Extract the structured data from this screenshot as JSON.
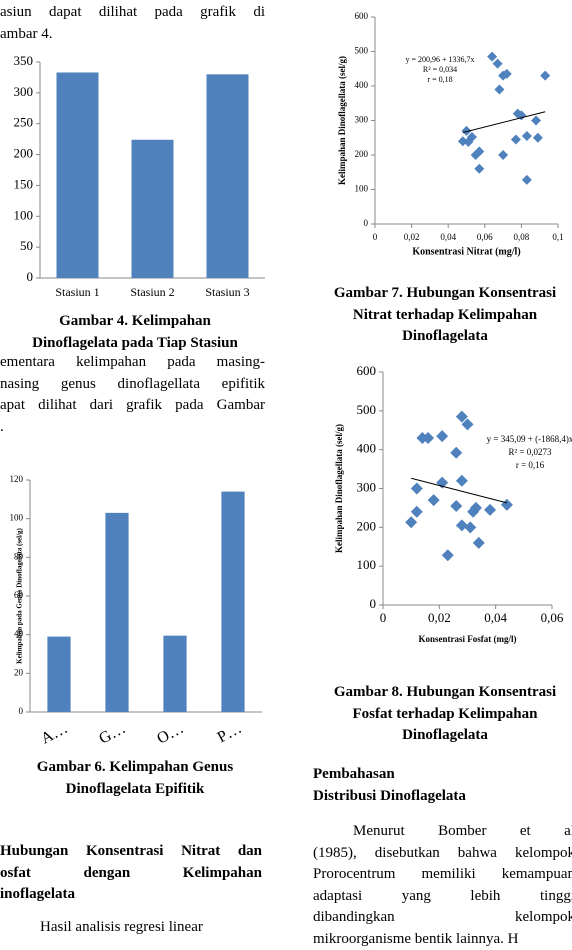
{
  "blocks": [
    {
      "lines": [
        "asiun dapat dilihat pada grafik di",
        "ambar 4."
      ]
    },
    {
      "lines": [
        "Gambar 4. Kelimpahan",
        "Dinoflagelata pada Tiap Stasiun"
      ]
    },
    {
      "lines": [
        "ementara kelimpahan pada masing-",
        "nasing genus dinoflagellata epifitik",
        "apat dilihat dari grafik pada Gambar",
        "."
      ]
    },
    {
      "lines": [
        "Gambar 6. Kelimpahan Genus",
        "Dinoflagelata Epifitik"
      ]
    },
    {
      "lines": [
        "Hubungan Konsentrasi Nitrat dan",
        "osfat dengan Kelimpahan",
        "inoflagelata"
      ]
    },
    {
      "lines": [
        "Hasil analisis regresi linear"
      ]
    },
    {
      "lines": [
        "Gambar 7. Hubungan Konsentrasi",
        "Nitrat terhadap Kelimpahan",
        "Dinoflagelata"
      ]
    },
    {
      "lines": [
        "Gambar 8. Hubungan Konsentrasi",
        "Fosfat terhadap Kelimpahan",
        "Dinoflagelata"
      ]
    },
    {
      "lines": [
        "Pembahasan",
        "Distribusi Dinoflagelata"
      ]
    },
    {
      "lines": [
        "Menurut Bomber et al",
        "(1985), disebutkan bahwa kelompok",
        "Prorocentrum memiliki kemampuan",
        "adaptasi yang lebih tinggi",
        "dibandingkan kelompok",
        "mikroorganisme bentik lainnya. H"
      ]
    }
  ],
  "chart_data": [
    {
      "type": "bar",
      "categories": [
        "Stasiun 1",
        "Stasiun 2",
        "Stasiun 3"
      ],
      "values": [
        333,
        224,
        330
      ],
      "color": "#4f81bd",
      "ylim": [
        0,
        350
      ],
      "yticks": [
        0,
        50,
        100,
        150,
        200,
        250,
        300,
        350
      ]
    },
    {
      "type": "bar",
      "ylabel": "Kelimpahan pada Genus Dinoflagelata (sel/g)",
      "categories": [
        "A…",
        "G…",
        "O…",
        "P…"
      ],
      "values": [
        39,
        103,
        39.5,
        114
      ],
      "color": "#4f81bd",
      "ylim": [
        0,
        120
      ],
      "yticks": [
        0,
        20,
        40,
        60,
        80,
        100,
        120
      ]
    },
    {
      "type": "scatter",
      "xlabel": "Konsentrasi Nitrat (mg/l)",
      "ylabel": "Kelimpahan Dinoflagellata (sel/g)",
      "annotation": [
        "y = 200,96 + 1336,7x",
        "R² = 0,034",
        "r = 0,18"
      ],
      "trend": {
        "intercept": 200.96,
        "slope": 1336.7
      },
      "color": "#4f81bd",
      "x": [
        0.048,
        0.05,
        0.051,
        0.053,
        0.055,
        0.057,
        0.057,
        0.064,
        0.067,
        0.068,
        0.07,
        0.072,
        0.07,
        0.077,
        0.078,
        0.08,
        0.083,
        0.083,
        0.088,
        0.089,
        0.093
      ],
      "values": [
        240,
        270,
        238,
        252,
        200,
        210,
        160,
        485,
        465,
        390,
        430,
        435,
        200,
        245,
        320,
        315,
        255,
        128,
        300,
        250,
        430
      ],
      "xlim": [
        0,
        0.1
      ],
      "xticks": [
        0,
        {
          "value": 0.02,
          "label": "0,02"
        },
        {
          "value": 0.04,
          "label": "0,04"
        },
        {
          "value": 0.06,
          "label": "0,06"
        },
        {
          "value": 0.08,
          "label": "0,08"
        },
        {
          "value": 0.1,
          "label": "0,1"
        }
      ],
      "ylim": [
        0,
        600
      ],
      "yticks": [
        0,
        100,
        200,
        300,
        400,
        500,
        600
      ]
    },
    {
      "type": "scatter",
      "xlabel": "Konsentrasi Fosfat (mg/l)",
      "ylabel": "Kelimpahan Dinoflagellata (sel/g)",
      "annotation": [
        "y =  345,09 + (-1868,4)x",
        "R² = 0,0273",
        "r = 0,16"
      ],
      "trend": {
        "intercept": 345.09,
        "slope": -1868.4
      },
      "color": "#4f81bd",
      "x": [
        0.01,
        0.012,
        0.012,
        0.014,
        0.016,
        0.018,
        0.021,
        0.021,
        0.023,
        0.026,
        0.026,
        0.028,
        0.028,
        0.028,
        0.03,
        0.031,
        0.032,
        0.033,
        0.034,
        0.038,
        0.044
      ],
      "values": [
        213,
        300,
        240,
        430,
        430,
        270,
        435,
        315,
        128,
        392,
        255,
        485,
        320,
        205,
        465,
        200,
        240,
        250,
        160,
        245,
        258
      ],
      "xlim": [
        0,
        0.06
      ],
      "xticks": [
        0,
        {
          "value": 0.02,
          "label": "0,02"
        },
        {
          "value": 0.04,
          "label": "0,04"
        },
        {
          "value": 0.06,
          "label": "0,06"
        }
      ],
      "ylim": [
        0,
        600
      ],
      "yticks": [
        0,
        100,
        200,
        300,
        400,
        500,
        600
      ]
    }
  ]
}
